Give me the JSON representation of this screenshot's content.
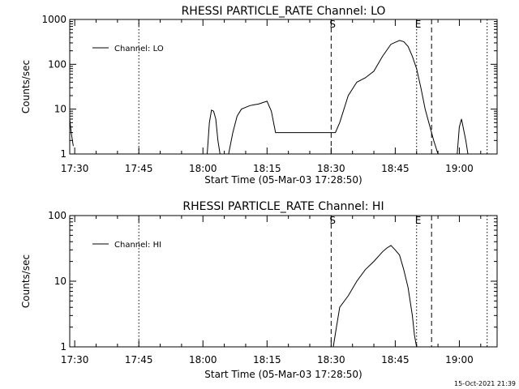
{
  "chart_data": [
    {
      "type": "line",
      "title": "RHESSI PARTICLE_RATE Channel: LO",
      "xlabel": "Start Time (05-Mar-03 17:28:50)",
      "ylabel": "Counts/sec",
      "yscale": "log",
      "ylim": [
        1,
        1000
      ],
      "xlim": [
        "17:28:50",
        "19:08:50"
      ],
      "x_ticks": [
        "17:30",
        "17:45",
        "18:00",
        "18:15",
        "18:30",
        "18:45",
        "19:00"
      ],
      "y_ticks": [
        "1",
        "10",
        "100",
        "1000"
      ],
      "legend": "top-left",
      "series": [
        {
          "name": "Channel: LO",
          "x": [
            "17:28:50",
            "17:29:10",
            "17:29:40",
            "17:30:00",
            "18:01:00",
            "18:01:30",
            "18:02:00",
            "18:02:30",
            "18:03:00",
            "18:03:30",
            "18:04:00",
            "18:06:00",
            "18:07:00",
            "18:08:00",
            "18:09:00",
            "18:10:00",
            "18:11:00",
            "18:12:00",
            "18:13:00",
            "18:14:00",
            "18:15:00",
            "18:16:00",
            "18:17:00",
            "18:31:00",
            "18:32:00",
            "18:34:00",
            "18:36:00",
            "18:38:00",
            "18:40:00",
            "18:42:00",
            "18:44:00",
            "18:46:00",
            "18:47:00",
            "18:48:00",
            "18:49:00",
            "18:50:00",
            "18:51:00",
            "18:52:00",
            "18:54:00",
            "18:55:00",
            "18:59:30",
            "19:00:00",
            "19:00:30",
            "19:01:30",
            "19:02:00"
          ],
          "y": [
            6,
            3,
            1.5,
            null,
            1,
            5,
            9.5,
            9,
            6,
            2,
            1,
            1,
            3,
            7,
            10,
            11,
            12,
            12.5,
            13,
            14,
            15,
            9,
            3,
            3,
            5,
            20,
            40,
            50,
            70,
            150,
            280,
            340,
            320,
            250,
            150,
            80,
            30,
            10,
            2,
            1,
            1,
            4,
            6,
            2,
            1
          ]
        }
      ],
      "annotations": [
        {
          "text": "S",
          "time": "18:30:00",
          "style": "dashed"
        },
        {
          "text": "E",
          "time": "18:50:00",
          "style": "dotted"
        },
        {
          "text": "",
          "time": "17:45:00",
          "style": "dotted"
        },
        {
          "text": "",
          "time": "18:53:30",
          "style": "dashed"
        },
        {
          "text": "",
          "time": "19:06:30",
          "style": "dotted"
        }
      ]
    },
    {
      "type": "line",
      "title": "RHESSI PARTICLE_RATE Channel: HI",
      "xlabel": "Start Time (05-Mar-03 17:28:50)",
      "ylabel": "Counts/sec",
      "yscale": "log",
      "ylim": [
        1,
        100
      ],
      "xlim": [
        "17:28:50",
        "19:08:50"
      ],
      "x_ticks": [
        "17:30",
        "17:45",
        "18:00",
        "18:15",
        "18:30",
        "18:45",
        "19:00"
      ],
      "y_ticks": [
        "1",
        "10",
        "100"
      ],
      "legend": "top-left",
      "series": [
        {
          "name": "Channel: HI",
          "x": [
            "18:30:30",
            "18:31:00",
            "18:32:00",
            "18:34:00",
            "18:36:00",
            "18:38:00",
            "18:40:00",
            "18:42:00",
            "18:43:00",
            "18:44:00",
            "18:45:00",
            "18:46:00",
            "18:47:00",
            "18:48:00",
            "18:49:00",
            "18:49:30",
            "18:50:00"
          ],
          "y": [
            1,
            1.6,
            4,
            6,
            10,
            15,
            20,
            28,
            32,
            35,
            30,
            25,
            15,
            8,
            3,
            1.5,
            1
          ]
        }
      ],
      "annotations": [
        {
          "text": "S",
          "time": "18:30:00",
          "style": "dashed"
        },
        {
          "text": "E",
          "time": "18:50:00",
          "style": "dotted"
        },
        {
          "text": "",
          "time": "17:45:00",
          "style": "dotted"
        },
        {
          "text": "",
          "time": "18:53:30",
          "style": "dashed"
        },
        {
          "text": "",
          "time": "19:06:30",
          "style": "dotted"
        }
      ]
    }
  ],
  "footer": {
    "timestamp": "15-Oct-2021 21:39"
  }
}
